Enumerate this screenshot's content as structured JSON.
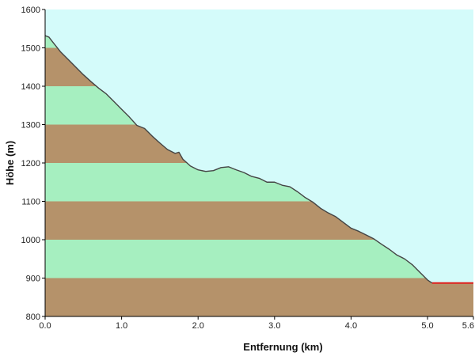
{
  "chart_data": {
    "type": "area",
    "title": "",
    "xlabel": "Entfernung  (km)",
    "ylabel": "Höhe (m)",
    "xlim": [
      0,
      5.6
    ],
    "ylim": [
      800,
      1600
    ],
    "x_ticks": [
      "0.0",
      "1.0",
      "2.0",
      "3.0",
      "4.0",
      "5.0",
      "5.6"
    ],
    "y_ticks": [
      "800",
      "900",
      "1000",
      "1100",
      "1200",
      "1300",
      "1400",
      "1500",
      "1600"
    ],
    "grid": false,
    "legend": "none",
    "band_step": 100,
    "series": [
      {
        "x": [
          0.0,
          0.05,
          0.1,
          0.2,
          0.3,
          0.4,
          0.5,
          0.6,
          0.7,
          0.8,
          0.9,
          1.0,
          1.1,
          1.2,
          1.3,
          1.4,
          1.5,
          1.6,
          1.7,
          1.75,
          1.8,
          1.9,
          2.0,
          2.1,
          2.2,
          2.3,
          2.4,
          2.5,
          2.6,
          2.7,
          2.8,
          2.9,
          3.0,
          3.1,
          3.2,
          3.3,
          3.4,
          3.5,
          3.6,
          3.7,
          3.8,
          3.9,
          4.0,
          4.1,
          4.2,
          4.3,
          4.4,
          4.5,
          4.6,
          4.7,
          4.8,
          4.9,
          5.0,
          5.06
        ],
        "values": [
          1532,
          1528,
          1515,
          1490,
          1470,
          1450,
          1430,
          1412,
          1395,
          1380,
          1360,
          1340,
          1320,
          1298,
          1290,
          1270,
          1252,
          1235,
          1225,
          1228,
          1210,
          1192,
          1182,
          1178,
          1180,
          1188,
          1190,
          1182,
          1175,
          1165,
          1160,
          1150,
          1150,
          1142,
          1138,
          1125,
          1110,
          1098,
          1082,
          1070,
          1060,
          1045,
          1030,
          1022,
          1012,
          1002,
          988,
          975,
          960,
          950,
          935,
          915,
          895,
          887
        ]
      }
    ],
    "endpoint_marker": {
      "x": [
        5.06,
        5.6
      ],
      "y": 887,
      "color": "#e0201c"
    },
    "colors": {
      "sky": "#d4fbfa",
      "band_brown": "#b5926a",
      "band_green": "#a6efc0",
      "profile_line": "#444444",
      "axis": "#000000"
    }
  }
}
